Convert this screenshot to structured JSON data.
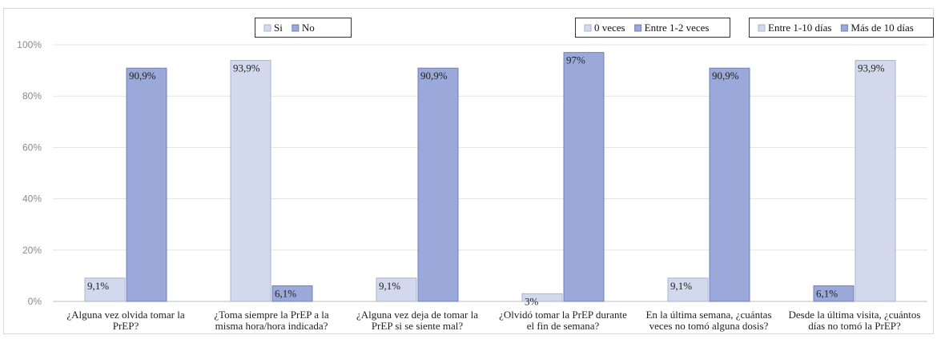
{
  "chart_data": {
    "type": "bar",
    "ylim": [
      0,
      100
    ],
    "yticks": [
      "0%",
      "20%",
      "40%",
      "60%",
      "80%",
      "100%"
    ],
    "grid": true,
    "categories": [
      [
        "¿Alguna vez olvida tomar la",
        "PrEP?"
      ],
      [
        "¿Toma siempre la PrEP a la",
        "misma hora/hora indicada?"
      ],
      [
        "¿Alguna vez deja de tomar la",
        "PrEP si se siente mal?"
      ],
      [
        "¿Olvidó tomar la PrEP durante",
        "el fin de semana?"
      ],
      [
        "En la última semana, ¿cuántas",
        "veces no tomó alguna dosis?"
      ],
      [
        "Desde la última visita, ¿cuántos",
        "días no tomó la PrEP?"
      ]
    ],
    "groups": [
      {
        "bars": [
          {
            "value": 9.1,
            "label": "9,1%",
            "tone": "light"
          },
          {
            "value": 90.9,
            "label": "90,9%",
            "tone": "dark"
          }
        ]
      },
      {
        "bars": [
          {
            "value": 93.9,
            "label": "93,9%",
            "tone": "light"
          },
          {
            "value": 6.1,
            "label": "6,1%",
            "tone": "dark"
          }
        ]
      },
      {
        "bars": [
          {
            "value": 9.1,
            "label": "9,1%",
            "tone": "light"
          },
          {
            "value": 90.9,
            "label": "90,9%",
            "tone": "dark"
          }
        ]
      },
      {
        "bars": [
          {
            "value": 3,
            "label": "3%",
            "tone": "light"
          },
          {
            "value": 97,
            "label": "97%",
            "tone": "dark"
          }
        ]
      },
      {
        "bars": [
          {
            "value": 9.1,
            "label": "9,1%",
            "tone": "light"
          },
          {
            "value": 90.9,
            "label": "90,9%",
            "tone": "dark"
          }
        ]
      },
      {
        "bars": [
          {
            "value": 6.1,
            "label": "6,1%",
            "tone": "dark"
          },
          {
            "value": 93.9,
            "label": "93,9%",
            "tone": "light"
          }
        ]
      }
    ],
    "legends": [
      {
        "placement": "top-left",
        "entries": [
          {
            "name": "Si",
            "tone": "light"
          },
          {
            "name": "No",
            "tone": "dark"
          }
        ]
      },
      {
        "placement": "top-center-right",
        "entries": [
          {
            "name": "0 veces",
            "tone": "light"
          },
          {
            "name": "Entre 1-2 veces",
            "tone": "dark"
          }
        ]
      },
      {
        "placement": "top-right",
        "entries": [
          {
            "name": "Entre 1-10 días",
            "tone": "light"
          },
          {
            "name": "Más de 10 días",
            "tone": "dark"
          }
        ]
      }
    ]
  },
  "colors": {
    "light": "#d3d9ec",
    "light_edge": "#aab3d4",
    "dark": "#9aa9d9",
    "dark_edge": "#6f80bd",
    "grid": "#e3e3e3",
    "axis": "#bdbdbd"
  }
}
